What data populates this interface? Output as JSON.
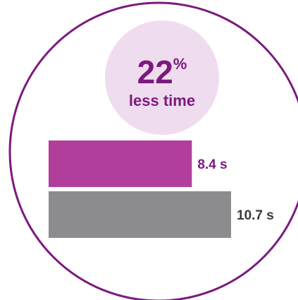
{
  "colors": {
    "accent": "#7b1a7f",
    "bubble": "#f0dcef",
    "bar_primary": "#b13e9b",
    "bar_secondary": "#8c8c8f",
    "label_secondary": "#3a3a3a"
  },
  "callout": {
    "percent_value": "22",
    "percent_sign": "%",
    "caption": "less time"
  },
  "chart_data": {
    "type": "bar",
    "orientation": "horizontal",
    "title": "",
    "xlabel": "",
    "ylabel": "",
    "xlim": [
      0,
      10.7
    ],
    "grid": false,
    "legend": "none",
    "series": [
      {
        "value": 8.4,
        "label": "8.4 s",
        "color": "#b13e9b"
      },
      {
        "value": 10.7,
        "label": "10.7 s",
        "color": "#8c8c8f"
      }
    ]
  }
}
